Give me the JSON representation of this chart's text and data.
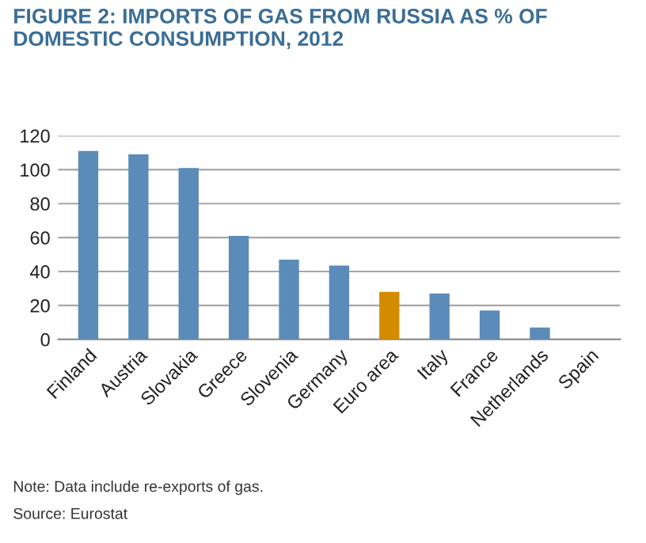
{
  "chart_data": {
    "type": "bar",
    "title": "FIGURE 2: IMPORTS OF GAS FROM RUSSIA AS % OF\nDOMESTIC CONSUMPTION, 2012",
    "categories": [
      "Finland",
      "Austria",
      "Slovakia",
      "Greece",
      "Slovenia",
      "Germany",
      "Euro area",
      "Italy",
      "France",
      "Netherlands",
      "Spain"
    ],
    "values": [
      111,
      109,
      101,
      61,
      47,
      43.5,
      28,
      27,
      17,
      7,
      0
    ],
    "colors": [
      "#5b8bb8",
      "#5b8bb8",
      "#5b8bb8",
      "#5b8bb8",
      "#5b8bb8",
      "#5b8bb8",
      "#d38b00",
      "#5b8bb8",
      "#5b8bb8",
      "#5b8bb8",
      "#5b8bb8"
    ],
    "ylim": [
      0,
      120
    ],
    "yticks": [
      0,
      20,
      40,
      60,
      80,
      100,
      120
    ],
    "grid": "y",
    "annotations": [
      "Note: Data include re-exports of gas.",
      "Source: Eurostat"
    ]
  }
}
